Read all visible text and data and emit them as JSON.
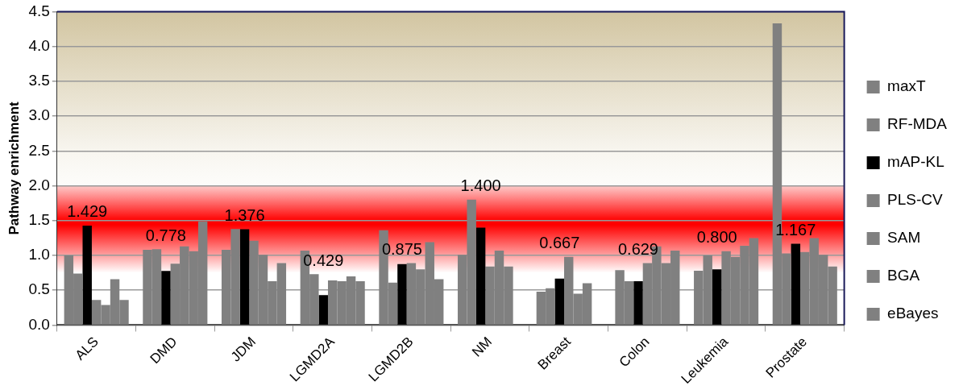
{
  "chart_data": {
    "type": "bar",
    "ylabel": "Pathway enrichment",
    "categories": [
      "ALS",
      "DMD",
      "JDM",
      "LGMD2A",
      "LGMD2B",
      "NM",
      "Breast",
      "Colon",
      "Leukemia",
      "Prostate"
    ],
    "series": [
      {
        "name": "maxT",
        "color": "#808080",
        "values": [
          1.0,
          1.08,
          1.08,
          1.07,
          1.36,
          1.01,
          0.48,
          0.79,
          0.78,
          4.33
        ]
      },
      {
        "name": "RF-MDA",
        "color": "#808080",
        "values": [
          0.74,
          1.09,
          1.38,
          0.73,
          0.61,
          1.8,
          0.53,
          0.63,
          1.0,
          1.03
        ]
      },
      {
        "name": "mAP-KL",
        "color": "#000000",
        "values": [
          1.429,
          0.778,
          1.376,
          0.429,
          0.875,
          1.4,
          0.667,
          0.629,
          0.8,
          1.167
        ],
        "value_labels": [
          "1.429",
          "0.778",
          "1.376",
          "0.429",
          "0.875",
          "1.400",
          "0.667",
          "0.629",
          "0.800",
          "1.167"
        ]
      },
      {
        "name": "PLS-CV",
        "color": "#808080",
        "values": [
          0.36,
          0.88,
          1.21,
          0.64,
          0.89,
          0.84,
          0.98,
          0.89,
          1.06,
          1.05
        ]
      },
      {
        "name": "SAM",
        "color": "#808080",
        "values": [
          0.29,
          1.13,
          1.01,
          0.63,
          0.8,
          1.07,
          0.45,
          1.13,
          0.98,
          1.25
        ]
      },
      {
        "name": "BGA",
        "color": "#808080",
        "values": [
          0.66,
          1.06,
          0.63,
          0.7,
          1.19,
          0.84,
          0.6,
          0.89,
          1.14,
          1.01
        ]
      },
      {
        "name": "eBayes",
        "color": "#808080",
        "values": [
          0.36,
          1.49,
          0.89,
          0.63,
          0.66,
          null,
          null,
          1.07,
          1.25,
          0.84
        ]
      }
    ],
    "ylim": [
      0,
      4.5
    ],
    "yticks": [
      {
        "value": 0,
        "label": "0.0"
      },
      {
        "value": 0.5,
        "label": "0.5"
      },
      {
        "value": 1,
        "label": "1.0"
      },
      {
        "value": 1.5,
        "label": "1.5"
      },
      {
        "value": 2,
        "label": "2.0"
      },
      {
        "value": 2.5,
        "label": "2.5"
      },
      {
        "value": 3,
        "label": "3.0"
      },
      {
        "value": 3.5,
        "label": "3.5"
      },
      {
        "value": 4,
        "label": "4.0"
      },
      {
        "value": 4.5,
        "label": "4.5"
      }
    ],
    "bands": [
      {
        "axis": "y",
        "from": 0.75,
        "to": 2.0,
        "color": "#ff0000"
      }
    ],
    "grid": "y",
    "legend": "right"
  }
}
